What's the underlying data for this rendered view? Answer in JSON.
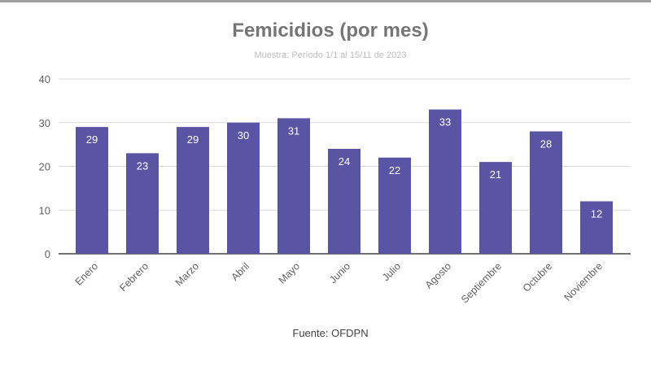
{
  "chart_data": {
    "type": "bar",
    "title": "Femicidios (por mes)",
    "subtitle": "Muestra: Período 1/1 al 15/11 de 2023",
    "source": "Fuente: OFDPN",
    "categories": [
      "Enero",
      "Febrero",
      "Marzo",
      "Abril",
      "Mayo",
      "Junio",
      "Julio",
      "Agosto",
      "Septiembre",
      "Octubre",
      "Noviembre"
    ],
    "values": [
      29,
      23,
      29,
      30,
      31,
      24,
      22,
      33,
      21,
      28,
      12
    ],
    "ylim": [
      0,
      40
    ],
    "yticks": [
      "0",
      "10",
      "20",
      "30",
      "40"
    ],
    "grid": true,
    "legend": "none",
    "bar_color": "#5a54a4",
    "data_labels": true
  }
}
